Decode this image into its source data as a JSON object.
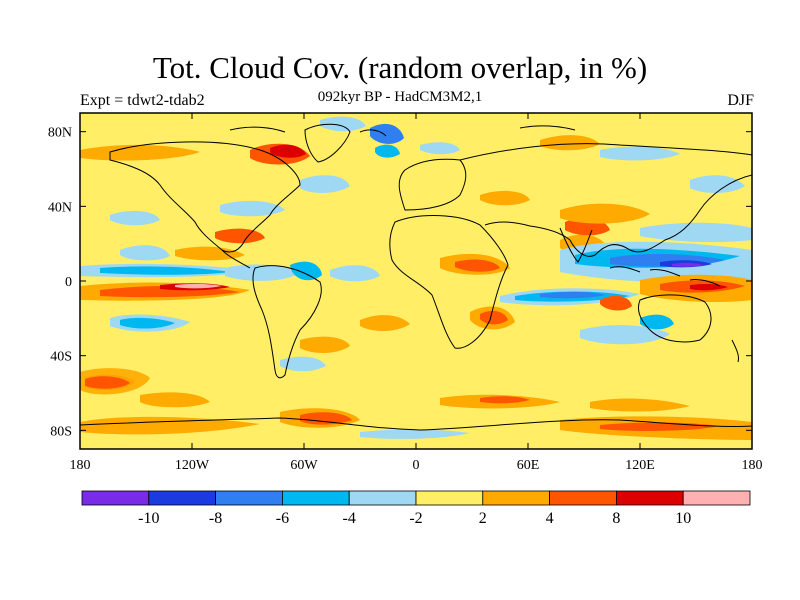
{
  "title": "Tot. Cloud Cov. (random overlap, in %)",
  "subtitle": "092kyr BP - HadCM3M2,1",
  "experiment_label": "Expt = tdwt2-tdab2",
  "season_label": "DJF",
  "map": {
    "projection": "cylindrical-equidistant",
    "lon_range": [
      -180,
      180
    ],
    "lat_range": [
      -90,
      90
    ],
    "lon_ticks": [
      {
        "value": -180,
        "label": "180"
      },
      {
        "value": -120,
        "label": "120W"
      },
      {
        "value": -60,
        "label": "60W"
      },
      {
        "value": 0,
        "label": "0"
      },
      {
        "value": 60,
        "label": "60E"
      },
      {
        "value": 120,
        "label": "120E"
      },
      {
        "value": 180,
        "label": "180"
      }
    ],
    "lat_ticks": [
      {
        "value": 80,
        "label": "80N"
      },
      {
        "value": 40,
        "label": "40N"
      },
      {
        "value": 0,
        "label": "0"
      },
      {
        "value": -40,
        "label": "40S"
      },
      {
        "value": -80,
        "label": "80S"
      }
    ],
    "background_color": "#ffee66"
  },
  "colorbar": {
    "colors": [
      "#7a2be8",
      "#1b3be0",
      "#2f7ff0",
      "#00b8f0",
      "#9fd8f2",
      "#ffee66",
      "#ffaa00",
      "#ff5500",
      "#dd0000",
      "#ffb0b0"
    ],
    "labels": [
      "-10",
      "-8",
      "-6",
      "-4",
      "-2",
      "2",
      "4",
      "8",
      "10"
    ]
  }
}
